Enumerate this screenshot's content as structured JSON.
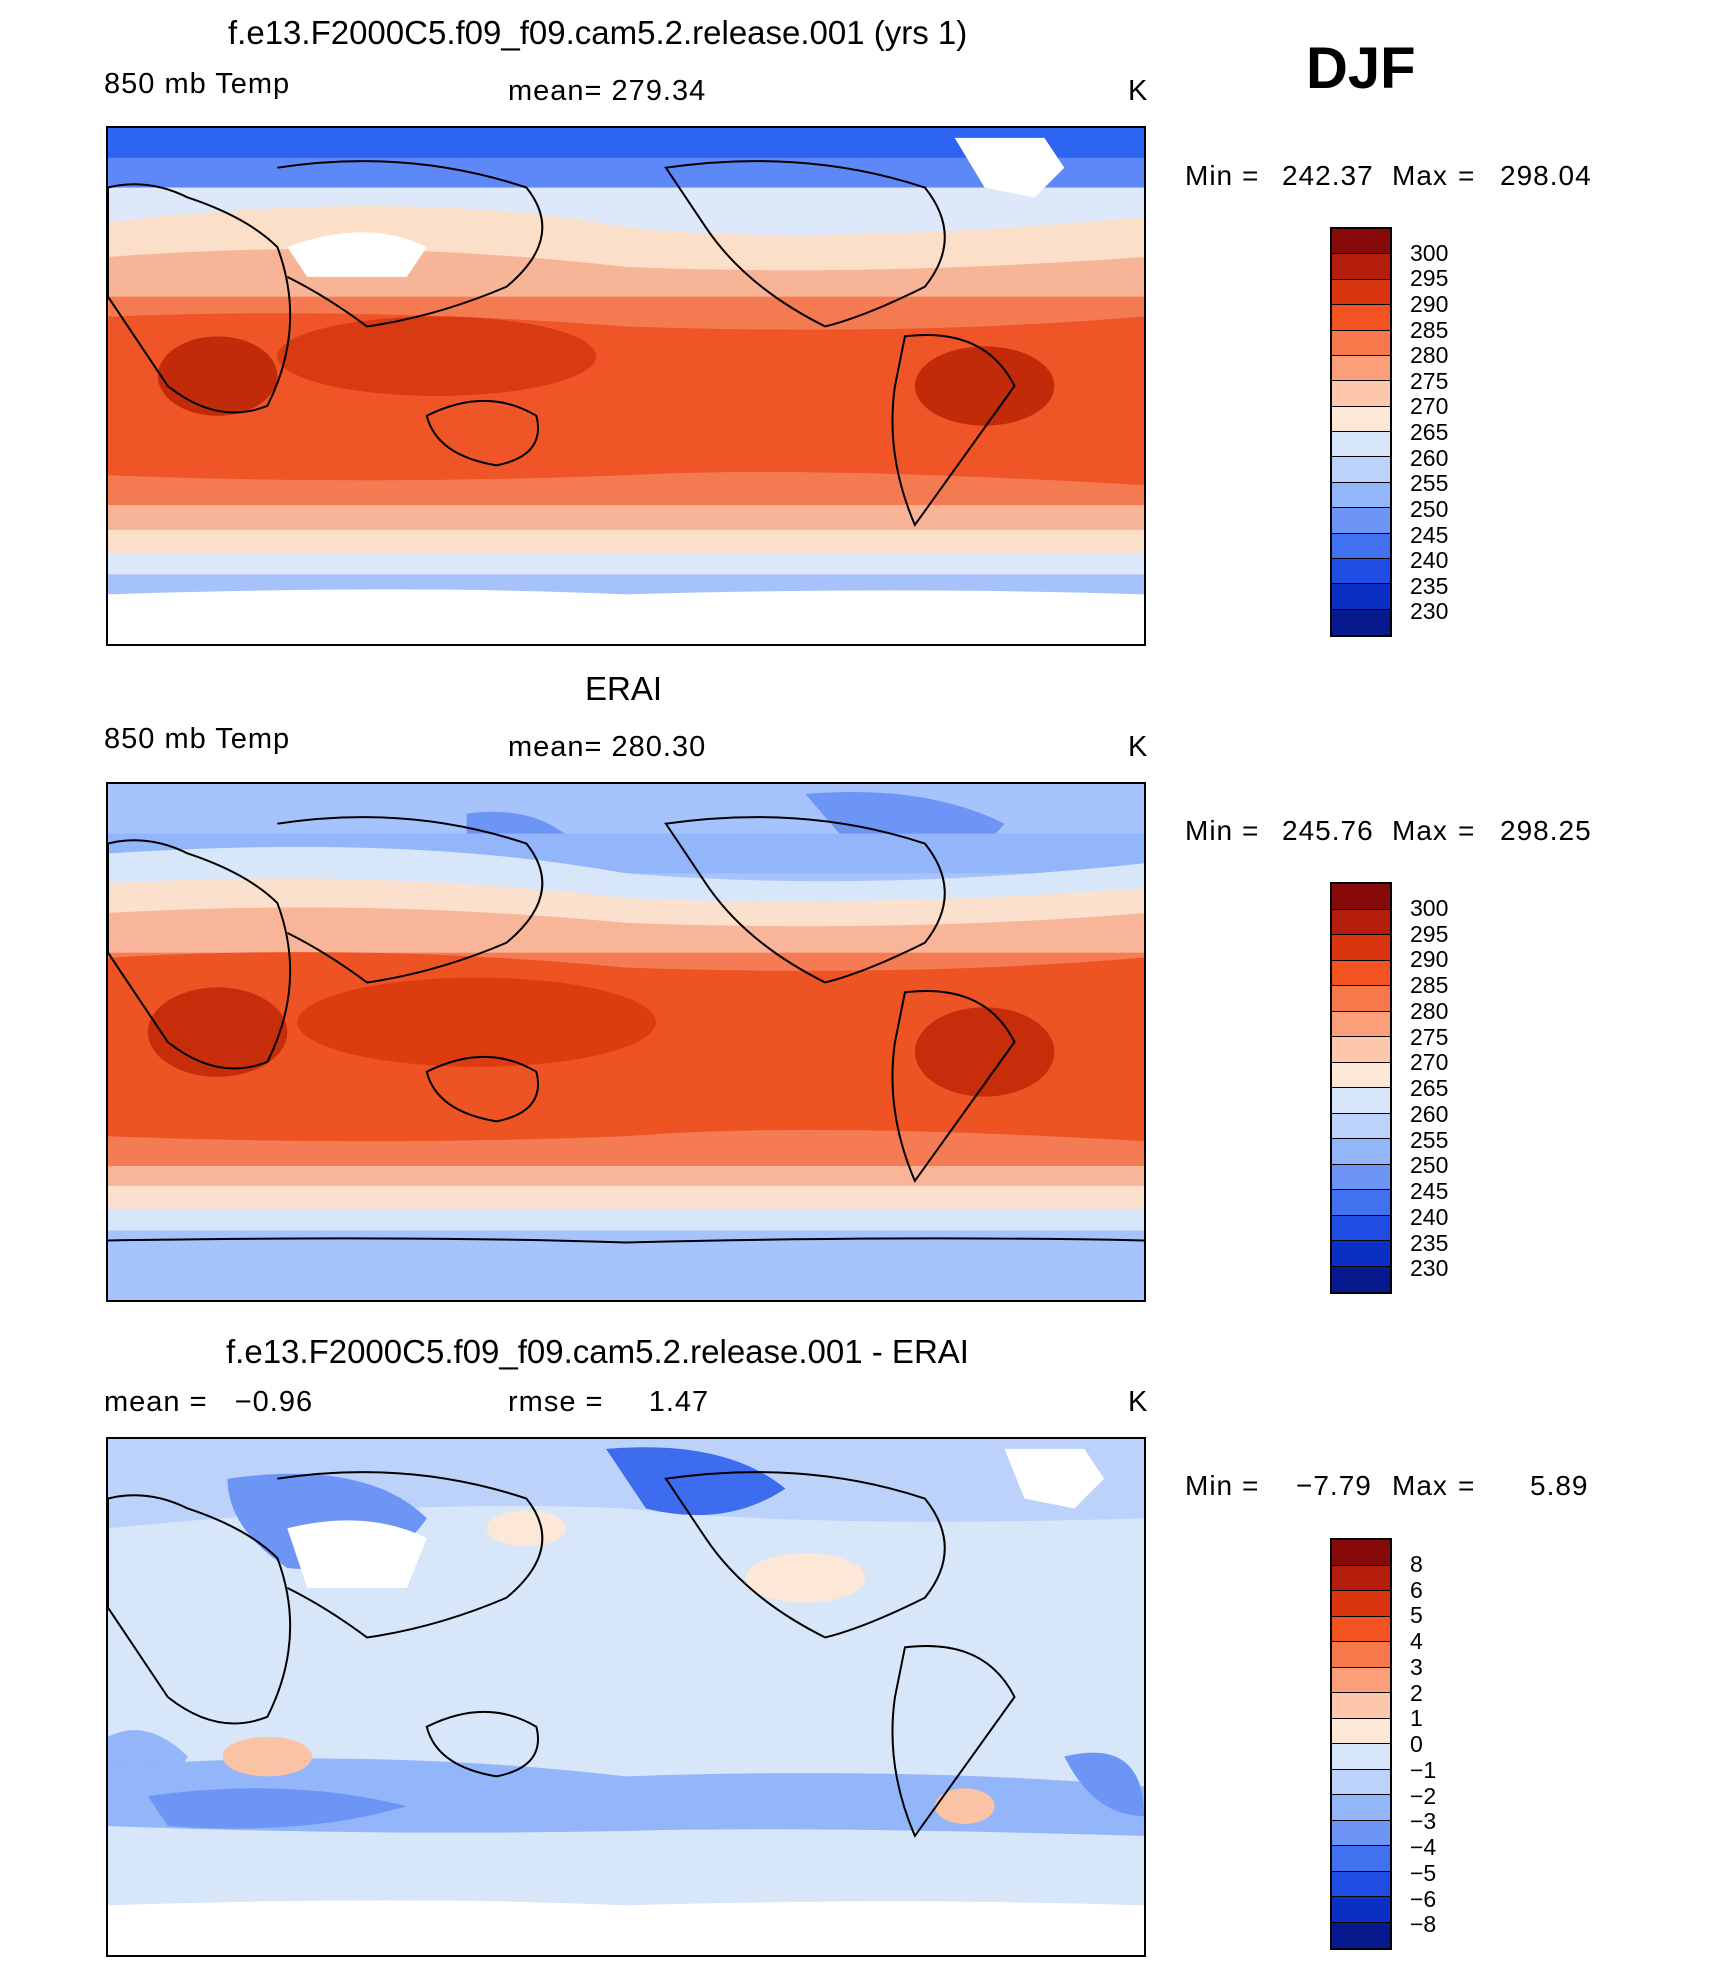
{
  "season": "DJF",
  "panels": [
    {
      "title": "f.e13.F2000C5.f09_f09.cam5.2.release.001 (yrs 1)",
      "left_label": "850 mb Temp",
      "center_label": "mean= 279.34",
      "units": "K",
      "min_label": "Min",
      "min_value": "242.37",
      "max_label": "Max",
      "max_value": "298.04",
      "map_layers": [
        "#2d65f2",
        "#5e88f8",
        "#a6c2fb",
        "#dde9fb",
        "#fbdfc9",
        "#f8b497",
        "#f47a52",
        "#ef5527",
        "#d83a12",
        "#c22b0a"
      ],
      "colorbar": {
        "colors": [
          "#870a0a",
          "#b51e0c",
          "#d9350f",
          "#f35320",
          "#f9784b",
          "#fa9f7a",
          "#fcc7ab",
          "#fde8d8",
          "#d8e6fa",
          "#bcd2fb",
          "#93b5fa",
          "#6d95f5",
          "#4271f0",
          "#1f4de4",
          "#0b2fc2",
          "#061a8e"
        ],
        "labels": [
          "300",
          "295",
          "290",
          "285",
          "280",
          "275",
          "270",
          "265",
          "260",
          "255",
          "250",
          "245",
          "240",
          "235",
          "230"
        ]
      }
    },
    {
      "title": "ERAI",
      "left_label": "850 mb Temp",
      "center_label": "mean= 280.30",
      "units": "K",
      "min_label": "Min",
      "min_value": "245.76",
      "max_label": "Max",
      "max_value": "298.25",
      "map_layers": [
        "#a7c3fb",
        "#6d95f5",
        "#93b5fa",
        "#d8e6fa",
        "#fbe1cd",
        "#f9b599",
        "#f47b53",
        "#ee5324",
        "#dc3d10",
        "#c62d0b"
      ],
      "colorbar": {
        "colors": [
          "#870a0a",
          "#b51e0c",
          "#d9350f",
          "#f35320",
          "#f9784b",
          "#fa9f7a",
          "#fcc7ab",
          "#fde8d8",
          "#d8e6fa",
          "#bcd2fb",
          "#93b5fa",
          "#6d95f5",
          "#4271f0",
          "#1f4de4",
          "#0b2fc2",
          "#061a8e"
        ],
        "labels": [
          "300",
          "295",
          "290",
          "285",
          "280",
          "275",
          "270",
          "265",
          "260",
          "255",
          "250",
          "245",
          "240",
          "235",
          "230"
        ]
      }
    },
    {
      "title": "f.e13.F2000C5.f09_f09.cam5.2.release.001 - ERAI",
      "left_label": "mean =   −0.96",
      "center_label": "rmse =     1.47",
      "units": "K",
      "min_label": "Min",
      "min_value": "−7.79",
      "max_label": "Max",
      "max_value": "5.89",
      "map_layers": [
        "#d8e6fa",
        "#bcd2fb",
        "#93b5fa",
        "#6d95f5",
        "#3d6cee",
        "#fde8d8",
        "#fac3a6"
      ],
      "colorbar": {
        "colors": [
          "#870a0a",
          "#b51e0c",
          "#d9350f",
          "#f35320",
          "#f9784b",
          "#fa9f7a",
          "#fcc7ab",
          "#fde8d8",
          "#d8e6fa",
          "#bcd2fb",
          "#93b5fa",
          "#6d95f5",
          "#4271f0",
          "#1f4de4",
          "#0b2fc2",
          "#061a8e"
        ],
        "labels": [
          "8",
          "6",
          "5",
          "4",
          "3",
          "2",
          "1",
          "0",
          "−1",
          "−2",
          "−3",
          "−4",
          "−5",
          "−6",
          "−8"
        ]
      }
    }
  ]
}
